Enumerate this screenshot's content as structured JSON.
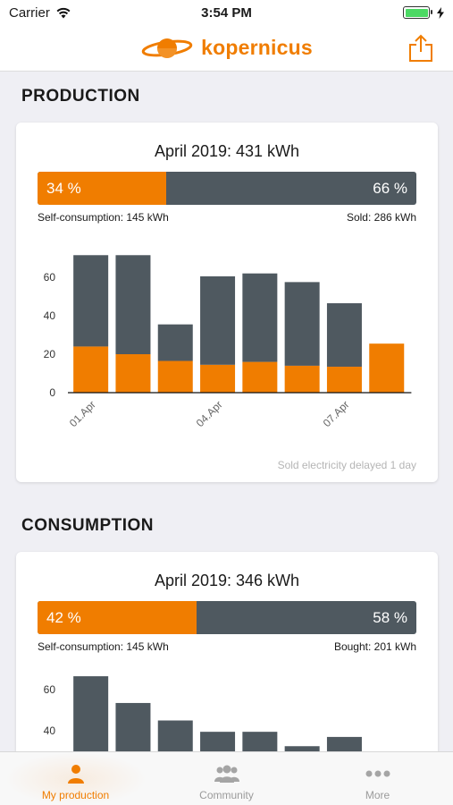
{
  "status_bar": {
    "carrier": "Carrier",
    "time": "3:54 PM"
  },
  "nav": {
    "brand": "kopernicus"
  },
  "production": {
    "section_title": "PRODUCTION",
    "card_title": "April 2019: 431 kWh",
    "split": {
      "left_pct": "34 %",
      "right_pct": "66 %",
      "fraction": 0.34,
      "left_label": "Self-consumption: 145 kWh",
      "right_label": "Sold: 286 kWh"
    },
    "footnote": "Sold electricity delayed 1 day"
  },
  "consumption": {
    "section_title": "CONSUMPTION",
    "card_title": "April 2019: 346 kWh",
    "split": {
      "left_pct": "42 %",
      "right_pct": "58 %",
      "fraction": 0.42,
      "left_label": "Self-consumption: 145 kWh",
      "right_label": "Bought: 201 kWh"
    }
  },
  "tabs": [
    {
      "label": "My production",
      "icon": "person-icon",
      "active": true
    },
    {
      "label": "Community",
      "icon": "group-icon",
      "active": false
    },
    {
      "label": "More",
      "icon": "more-dots-icon",
      "active": false
    }
  ],
  "colors": {
    "accent": "#f07d00",
    "dark": "#4f5960"
  },
  "chart_data": [
    {
      "type": "bar",
      "stacked": true,
      "categories": [
        "01.Apr",
        "02.Apr",
        "03.Apr",
        "04.Apr",
        "05.Apr",
        "06.Apr",
        "07.Apr",
        "08.Apr"
      ],
      "tick_labels": [
        "01.Apr",
        "04.Apr",
        "07.Apr"
      ],
      "series": [
        {
          "values": [
            24,
            20,
            16.5,
            14.5,
            16,
            14,
            13.5,
            25.5
          ],
          "color": "#f07d00"
        },
        {
          "values": [
            47.5,
            51.5,
            19,
            46,
            46,
            43.5,
            33,
            0
          ],
          "color": "#4f5960"
        }
      ],
      "yticks": [
        0,
        20,
        40,
        60
      ],
      "ylim": [
        0,
        72
      ]
    },
    {
      "type": "bar",
      "stacked": true,
      "categories": [
        "01.Apr",
        "02.Apr",
        "03.Apr",
        "04.Apr",
        "05.Apr",
        "06.Apr",
        "07.Apr"
      ],
      "series": [
        {
          "values": [
            66.5,
            53.5,
            45,
            39.5,
            39.5,
            32.5,
            37
          ],
          "color": "#4f5960"
        }
      ],
      "yticks": [
        40,
        60
      ],
      "visible_ylim": [
        32.5,
        72
      ]
    }
  ]
}
